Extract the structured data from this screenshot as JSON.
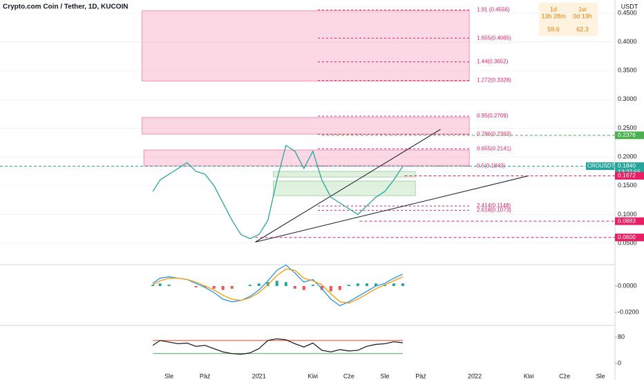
{
  "header": {
    "title": "Crypto.com Coin / Tether, 1D, KUCOIN",
    "currency": "USDT",
    "countdown": [
      {
        "period": "1d",
        "time": "13h 28m",
        "value": "59.6"
      },
      {
        "period": "1w",
        "time": "0d 13h",
        "value": "62.3"
      }
    ]
  },
  "chart_data": [
    {
      "type": "line",
      "xlim": [
        -9.4,
        24.8
      ],
      "ylim": [
        0.014,
        0.4728
      ],
      "yticks": [
        {
          "value": 0.45,
          "label": "0.4500"
        },
        {
          "value": 0.4,
          "label": "0.4000"
        },
        {
          "value": 0.35,
          "label": "0.3500"
        },
        {
          "value": 0.3,
          "label": "0.3000"
        },
        {
          "value": 0.25,
          "label": "0.2500"
        },
        {
          "value": 0.2,
          "label": "0.2000"
        },
        {
          "value": 0.15,
          "label": "0.1500"
        },
        {
          "value": 0.1,
          "label": "0.1000"
        },
        {
          "value": 0.05,
          "label": "0.0500"
        }
      ],
      "grid": true,
      "x": [
        -0.9,
        -0.5,
        0,
        0.5,
        1,
        1.5,
        2,
        2.5,
        3,
        3.5,
        4,
        4.5,
        5,
        5.5,
        6,
        6.5,
        7,
        7.5,
        8,
        8.5,
        9,
        9.5,
        10,
        10.5,
        11,
        11.5,
        12,
        12.5,
        13
      ],
      "series": [
        {
          "name": "CROUSDT",
          "color": "#26a69a",
          "values": [
            0.14,
            0.16,
            0.17,
            0.18,
            0.19,
            0.175,
            0.17,
            0.15,
            0.12,
            0.09,
            0.065,
            0.058,
            0.065,
            0.09,
            0.16,
            0.22,
            0.21,
            0.18,
            0.21,
            0.16,
            0.13,
            0.12,
            0.11,
            0.1,
            0.115,
            0.13,
            0.14,
            0.16,
            0.184
          ]
        }
      ],
      "zones": [
        {
          "x": [
            -1.5,
            16.7
          ],
          "y": [
            0.332,
            0.454
          ],
          "color": "#f48fb1"
        },
        {
          "x": [
            -1.5,
            16.7
          ],
          "y": [
            0.2397,
            0.2685
          ],
          "color": "#f48fb1"
        },
        {
          "x": [
            -1.4,
            16.7
          ],
          "y": [
            0.1844,
            0.212
          ],
          "color": "#f48fb1"
        },
        {
          "x": [
            5.8,
            13.7
          ],
          "y": [
            0.1651,
            0.1748
          ],
          "color": "#a5d6a7"
        },
        {
          "x": [
            5.8,
            13.7
          ],
          "y": [
            0.1327,
            0.158
          ],
          "color": "#a5d6a7"
        }
      ],
      "trendlines": [
        {
          "x": [
            4.8,
            20
          ],
          "y": [
            0.052,
            0.1672
          ]
        },
        {
          "x": [
            4.8,
            15.1
          ],
          "y": [
            0.052,
            0.248
          ]
        }
      ],
      "fib_levels": [
        {
          "label": "1.91 (0.4556)",
          "value": 0.4556
        },
        {
          "label": "1.655(0.4065)",
          "value": 0.4065
        },
        {
          "label": "1.44(0.3652)",
          "value": 0.3652
        },
        {
          "label": "1.272(0.3328)",
          "value": 0.3328
        },
        {
          "label": "0.95(0.2709)",
          "value": 0.2709
        },
        {
          "label": "0.786(0.2393)",
          "value": 0.2393
        },
        {
          "label": "0.655(0.2141)",
          "value": 0.2141
        },
        {
          "label": "0.5(0.1843)",
          "value": 0.1843
        },
        {
          "label": "2.414(0.1148)",
          "value": 0.1148
        },
        {
          "label": "2.618(0.1073)",
          "value": 0.1073
        }
      ],
      "price_tags": [
        {
          "label": "0.2376",
          "value": 0.2376,
          "color": "#4caf50",
          "x": 8.5
        },
        {
          "label": "0.1840",
          "value": 0.184,
          "color": "#26a69a",
          "x": -9.4,
          "name": "CROUSDT",
          "time": "13:27:55"
        },
        {
          "label": "0.1672",
          "value": 0.1672,
          "color": "#e91e63",
          "x": 13.1
        },
        {
          "label": "0.0883",
          "value": 0.0883,
          "color": "#e91e63",
          "x": 10.6
        },
        {
          "label": "0.0600",
          "value": 0.06,
          "color": "#e91e63",
          "x": 4.8
        }
      ]
    },
    {
      "type": "bar",
      "xlim": [
        -9.4,
        24.8
      ],
      "ylim": [
        -0.0295,
        0.0158
      ],
      "yticks": [
        {
          "value": 0,
          "label": "0.0000"
        },
        {
          "value": -0.02,
          "label": "-0.0200"
        }
      ],
      "x": [
        -0.9,
        -0.5,
        0,
        0.5,
        1,
        1.5,
        2,
        2.5,
        3,
        3.5,
        4,
        4.5,
        5,
        5.5,
        6,
        6.5,
        7,
        7.5,
        8,
        8.5,
        9,
        9.5,
        10,
        10.5,
        11,
        11.5,
        12,
        12.5,
        13
      ],
      "values": [
        0.001,
        0.002,
        0.001,
        0,
        0,
        -0.001,
        -0.001,
        -0.002,
        -0.003,
        -0.002,
        0,
        0.001,
        0.002,
        0.003,
        0.004,
        0.003,
        -0.002,
        -0.003,
        0.001,
        -0.003,
        -0.004,
        -0.003,
        0.001,
        0.002,
        0.002,
        0.002,
        0.001,
        0.002,
        0.002
      ],
      "series": [
        {
          "color": "#2196f3",
          "values": [
            0.002,
            0.006,
            0.007,
            0.006,
            0.005,
            0.002,
            -0.001,
            -0.005,
            -0.01,
            -0.012,
            -0.011,
            -0.008,
            -0.003,
            0.004,
            0.012,
            0.016,
            0.01,
            0.003,
            0.005,
            -0.002,
            -0.01,
            -0.015,
            -0.012,
            -0.008,
            -0.004,
            0,
            0.002,
            0.006,
            0.009
          ]
        },
        {
          "color": "#ff9800",
          "values": [
            0.001,
            0.004,
            0.006,
            0.006,
            0.005,
            0.003,
            0,
            -0.003,
            -0.007,
            -0.01,
            -0.011,
            -0.009,
            -0.005,
            0.001,
            0.008,
            0.013,
            0.012,
            0.006,
            0.004,
            0.001,
            -0.006,
            -0.012,
            -0.013,
            -0.01,
            -0.006,
            -0.002,
            0.001,
            0.004,
            0.007
          ]
        }
      ]
    },
    {
      "type": "line",
      "xlim": [
        -9.4,
        24.8
      ],
      "ylim": [
        -29.5,
        113.7
      ],
      "yticks": [
        0,
        80
      ],
      "xticks": [
        {
          "value": 0,
          "label": "Sie"
        },
        {
          "value": 2,
          "label": "Paź"
        },
        {
          "value": 5,
          "label": "2021"
        },
        {
          "value": 8,
          "label": "Kwi"
        },
        {
          "value": 10,
          "label": "Cze"
        },
        {
          "value": 12,
          "label": "Sie"
        },
        {
          "value": 14,
          "label": "Paź"
        },
        {
          "value": 17,
          "label": "2022"
        },
        {
          "value": 20,
          "label": "Kwi"
        },
        {
          "value": 22,
          "label": "Cze"
        },
        {
          "value": 24,
          "label": "Sie"
        }
      ],
      "levels": [
        {
          "value": 70,
          "color": "#f44336"
        },
        {
          "value": 30,
          "color": "#4caf50"
        }
      ],
      "x": [
        -0.9,
        -0.5,
        0,
        0.5,
        1,
        1.5,
        2,
        2.5,
        3,
        3.5,
        4,
        4.5,
        5,
        5.5,
        6,
        6.5,
        7,
        7.5,
        8,
        8.5,
        9,
        9.5,
        10,
        10.5,
        11,
        11.5,
        12,
        12.5,
        13
      ],
      "series": [
        {
          "color": "#212121",
          "values": [
            55,
            70,
            65,
            60,
            62,
            52,
            55,
            45,
            35,
            30,
            28,
            32,
            45,
            70,
            75,
            72,
            60,
            50,
            62,
            40,
            35,
            42,
            38,
            40,
            52,
            58,
            60,
            66,
            63
          ]
        }
      ]
    }
  ]
}
